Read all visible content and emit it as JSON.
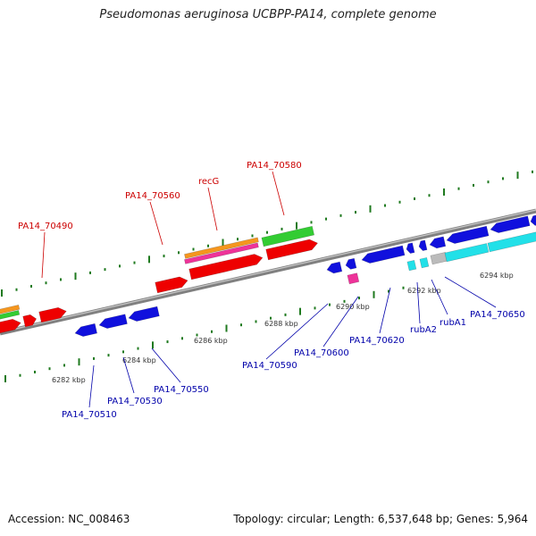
{
  "title": "Pseudomonas aeruginosa UCBPP-PA14, complete genome",
  "footer": {
    "accession": "Accession: NC_008463",
    "stats": "Topology: circular; Length: 6,537,648 bp; Genes: 5,964"
  },
  "colors": {
    "backbone": "#808080",
    "tick": "#1f7a1f",
    "forward_label": "#cc0000",
    "reverse_label": "#0000aa",
    "red": "#ee0000",
    "blue": "#1010dd",
    "cyan": "#22e0e8",
    "green": "#33cc33",
    "orange": "#f5961e",
    "magenta": "#ee3399",
    "gray": "#bbbbbb"
  },
  "scale_labels": [
    "6282 kbp",
    "6284 kbp",
    "6286 kbp",
    "6288 kbp",
    "6290 kbp",
    "6292 kbp",
    "6294 kbp"
  ],
  "forward_labels": [
    "PA14_70490",
    "PA14_70560",
    "recG",
    "PA14_70580"
  ],
  "reverse_labels": [
    "PA14_70510",
    "PA14_70530",
    "PA14_70550",
    "PA14_70590",
    "PA14_70600",
    "PA14_70620",
    "rubA2",
    "rubA1",
    "PA14_70650"
  ]
}
